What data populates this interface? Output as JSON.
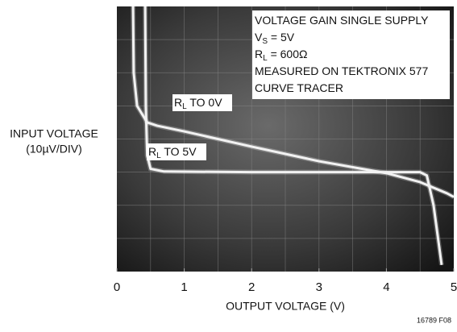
{
  "chart_data": {
    "type": "line",
    "y_axis_label_lines": [
      "INPUT VOLTAGE",
      "(10µV/DIV)"
    ],
    "x_axis_label": "OUTPUT VOLTAGE (V)",
    "xlim": [
      0,
      5
    ],
    "xticks": [
      0,
      1,
      2,
      3,
      4,
      5
    ],
    "ylim": [
      0,
      80
    ],
    "info_box": [
      {
        "main": "VOLTAGE GAIN SINGLE SUPPLY"
      },
      {
        "main": "V",
        "sub": "S",
        "rest": " = 5V"
      },
      {
        "main": "R",
        "sub": "L",
        "rest": " = 600Ω"
      },
      {
        "main": "MEASURED ON TEKTRONIX 577"
      },
      {
        "main": "CURVE TRACER"
      }
    ],
    "series": [
      {
        "label": {
          "main": "R",
          "sub": "L",
          "rest": " TO 0V"
        },
        "color": "#f2f2f2",
        "x": [
          0.24,
          0.25,
          0.3,
          0.45,
          0.6,
          1,
          2,
          3,
          4,
          4.5,
          4.9,
          5
        ],
        "values": [
          80,
          60,
          50,
          45,
          44,
          42.3,
          37.7,
          33.3,
          29.7,
          27,
          23.6,
          22.5
        ]
      },
      {
        "label": {
          "main": "R",
          "sub": "L",
          "rest": " TO 5V"
        },
        "color": "#f2f2f2",
        "x": [
          0.42,
          0.43,
          0.45,
          0.5,
          0.7,
          2,
          3,
          4,
          4.5,
          4.6,
          4.7,
          4.78,
          4.82
        ],
        "values": [
          80,
          50,
          35,
          31,
          30.2,
          30,
          30,
          30,
          30,
          29,
          20,
          8,
          2
        ]
      }
    ],
    "figure_id": "16789 F08"
  }
}
